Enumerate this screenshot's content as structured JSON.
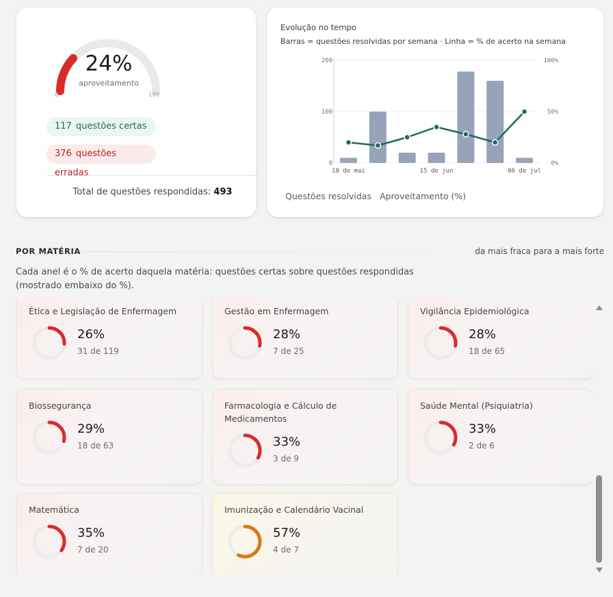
{
  "summary": {
    "gauge": {
      "value": 24,
      "value_text": "24%",
      "caption": "aproveitamento",
      "min": "0",
      "max": "100"
    },
    "correct": {
      "count": "117",
      "label": "questões certas"
    },
    "wrong": {
      "count": "376",
      "label": "questões erradas"
    },
    "total_label": "Total de questões respondidas:",
    "total_value": "493",
    "colors": {
      "gauge_fill": "#d92b2b",
      "gauge_track": "#e9e9e9"
    }
  },
  "evolution": {
    "title": "Evolução no tempo",
    "subtitle": "Barras = questões resolvidas por semana · Linha = % de acerto na semana",
    "legend": {
      "bars": "Questões resolvidas",
      "line": "Aproveitamento (%)"
    },
    "colors": {
      "bars": "#97a3b8",
      "line": "#1f6b5b"
    }
  },
  "chart_data": {
    "type": "bar",
    "title": "Evolução no tempo",
    "subtitle": "Barras = questões resolvidas por semana · Linha = % de acerto na semana",
    "x_tick_labels": [
      "18 de mai",
      "15 de jun",
      "06 de jul"
    ],
    "x_tick_indices": [
      0,
      3,
      6
    ],
    "y_left": {
      "ticks": [
        "0",
        "100",
        "200"
      ],
      "lim": [
        0,
        200
      ]
    },
    "y_right": {
      "ticks": [
        "0%",
        "50%",
        "100%"
      ],
      "lim": [
        0,
        100
      ]
    },
    "series": [
      {
        "name": "Questões resolvidas",
        "type": "bar",
        "values": [
          10,
          100,
          20,
          20,
          178,
          160,
          10
        ]
      },
      {
        "name": "Aproveitamento (%)",
        "type": "line",
        "axis": "right",
        "values": [
          20,
          17,
          25,
          35,
          28,
          20,
          50
        ]
      }
    ],
    "grid": true
  },
  "section": {
    "title": "POR MATÉRIA",
    "order_label": "da mais fraca para a mais forte",
    "description": "Cada anel é o % de acerto daquela matéria: questões certas sobre questões respondidas (mostrado embaixo do %)."
  },
  "subjects": [
    {
      "name": "Ética e Legislação de Enfermagem",
      "pct": 26,
      "pct_text": "26%",
      "count": "31 de 119",
      "color": "#d92b2b"
    },
    {
      "name": "Gestão em Enfermagem",
      "pct": 28,
      "pct_text": "28%",
      "count": "7 de 25",
      "color": "#d92b2b"
    },
    {
      "name": "Vigilância Epidemiológica",
      "pct": 28,
      "pct_text": "28%",
      "count": "18 de 65",
      "color": "#d92b2b"
    },
    {
      "name": "Biossegurança",
      "pct": 29,
      "pct_text": "29%",
      "count": "18 de 63",
      "color": "#d92b2b"
    },
    {
      "name": "Farmacologia e Cálculo de Medicamentos",
      "pct": 33,
      "pct_text": "33%",
      "count": "3 de 9",
      "color": "#d92b2b"
    },
    {
      "name": "Saúde Mental (Psiquiatria)",
      "pct": 33,
      "pct_text": "33%",
      "count": "2 de 6",
      "color": "#d92b2b"
    },
    {
      "name": "Matemática",
      "pct": 35,
      "pct_text": "35%",
      "count": "7 de 20",
      "color": "#d92b2b"
    },
    {
      "name": "Imunização e Calendário Vacinal",
      "pct": 57,
      "pct_text": "57%",
      "count": "4 de 7",
      "color": "#d97a12"
    }
  ],
  "ring_track_color": "#ececec"
}
